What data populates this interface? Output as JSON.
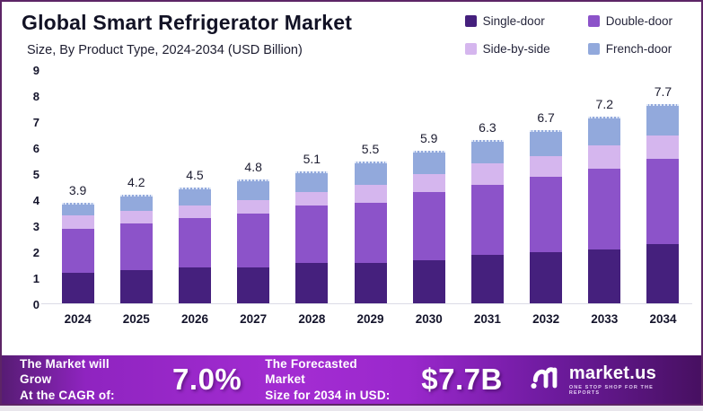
{
  "header": {
    "title": "Global Smart Refrigerator Market",
    "subtitle": "Size, By Product Type, 2024-2034 (USD Billion)"
  },
  "legend": [
    {
      "label": "Single-door",
      "color": "#45207d"
    },
    {
      "label": "Double-door",
      "color": "#8c53c9"
    },
    {
      "label": "Side-by-side",
      "color": "#d5b6ee"
    },
    {
      "label": "French-door",
      "color": "#92a9dc"
    }
  ],
  "chart_data": {
    "type": "bar",
    "stacked": true,
    "title": "Global Smart Refrigerator Market Size, By Product Type, 2024-2034 (USD Billion)",
    "categories": [
      "2024",
      "2025",
      "2026",
      "2027",
      "2028",
      "2029",
      "2030",
      "2031",
      "2032",
      "2033",
      "2034"
    ],
    "series": [
      {
        "name": "Single-door",
        "color": "#45207d",
        "values": [
          1.2,
          1.3,
          1.4,
          1.4,
          1.6,
          1.6,
          1.7,
          1.9,
          2.0,
          2.1,
          2.3
        ]
      },
      {
        "name": "Double-door",
        "color": "#8c53c9",
        "values": [
          1.7,
          1.8,
          1.9,
          2.1,
          2.2,
          2.3,
          2.6,
          2.7,
          2.9,
          3.1,
          3.3
        ]
      },
      {
        "name": "Side-by-side",
        "color": "#d5b6ee",
        "values": [
          0.5,
          0.5,
          0.5,
          0.5,
          0.5,
          0.7,
          0.7,
          0.8,
          0.8,
          0.9,
          0.9
        ]
      },
      {
        "name": "French-door",
        "color": "#92a9dc",
        "values": [
          0.5,
          0.6,
          0.7,
          0.8,
          0.8,
          0.9,
          0.9,
          0.9,
          1.0,
          1.1,
          1.2
        ]
      }
    ],
    "totals": [
      3.9,
      4.2,
      4.5,
      4.8,
      5.1,
      5.5,
      5.9,
      6.3,
      6.7,
      7.2,
      7.7
    ],
    "xlabel": "",
    "ylabel": "",
    "ylim": [
      0,
      9
    ],
    "yticks": [
      0,
      1,
      2,
      3,
      4,
      5,
      6,
      7,
      8,
      9
    ],
    "grid": false,
    "legend_position": "top-right"
  },
  "banner": {
    "cagr_label_line1": "The Market will Grow",
    "cagr_label_line2": "At the CAGR of:",
    "cagr_value": "7.0%",
    "forecast_label_line1": "The Forecasted Market",
    "forecast_label_line2": "Size for 2034 in USD:",
    "forecast_value": "$7.7B",
    "logo_name": "market.us",
    "logo_tagline": "ONE STOP SHOP FOR THE REPORTS"
  }
}
